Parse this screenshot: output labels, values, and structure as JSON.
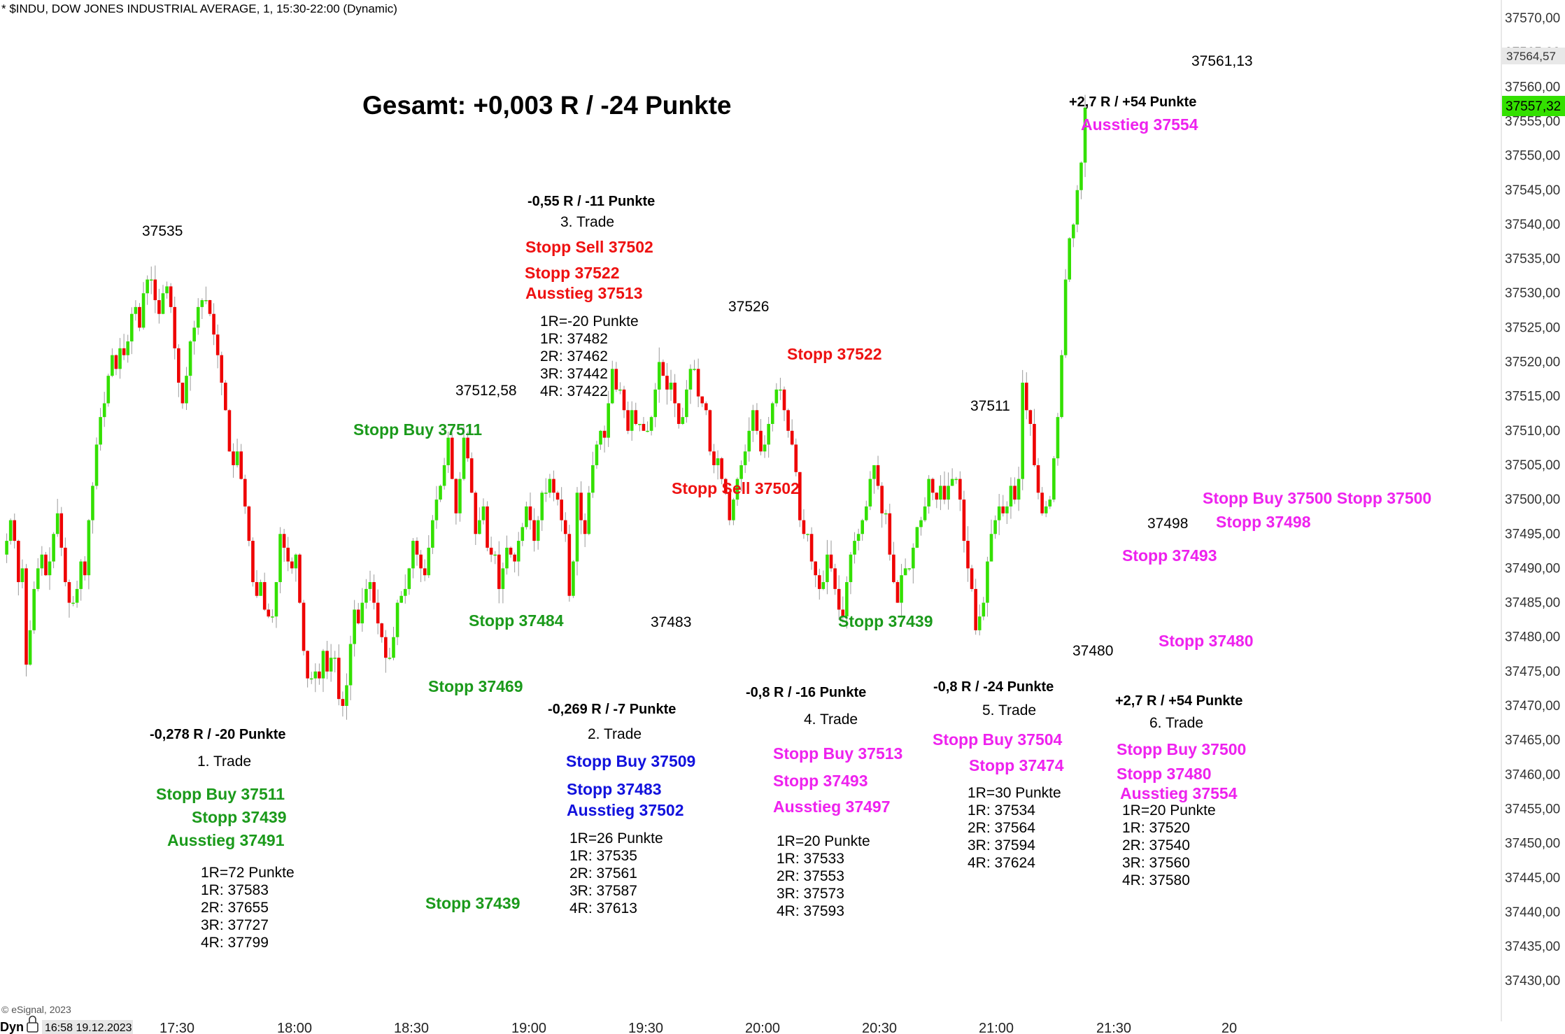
{
  "header": {
    "symbol_line": "* $INDU, DOW JONES INDUSTRIAL AVERAGE, 1, 15:30-22:00 (Dynamic)"
  },
  "footer": {
    "copyright": "© eSignal, 2023",
    "mode": "Dyn",
    "timestamp": "16:58 19.12.2023"
  },
  "colors": {
    "up": "#33e000",
    "down": "#ee0000",
    "green_note": "#1b9a1b",
    "red_note": "#ee1111",
    "blue_note": "#1111dd",
    "magenta_note": "#ee22ee",
    "last_price_bg": "#33e000"
  },
  "price_axis": {
    "labels": [
      "37570,00",
      "37565,00",
      "37560,00",
      "37555,00",
      "37550,00",
      "37545,00",
      "37540,00",
      "37535,00",
      "37530,00",
      "37525,00",
      "37520,00",
      "37515,00",
      "37510,00",
      "37505,00",
      "37500,00",
      "37495,00",
      "37490,00",
      "37485,00",
      "37480,00",
      "37475,00",
      "37470,00",
      "37465,00",
      "37460,00",
      "37455,00",
      "37450,00",
      "37445,00",
      "37440,00",
      "37435,00",
      "37430,00"
    ],
    "ref_price": "37564,57",
    "last_price": "37557,32"
  },
  "time_axis": [
    "17:30",
    "18:00",
    "18:30",
    "19:00",
    "19:30",
    "20:00",
    "20:30",
    "21:00",
    "21:30",
    "20"
  ],
  "title": "Gesamt: +0,003 R / -24 Punkte",
  "price_marks": [
    "37535",
    "37512,58",
    "37526",
    "37511",
    "37561,13",
    "37483",
    "37480",
    "37498"
  ],
  "annotations": {
    "t1": {
      "result": "-0,278 R / -20 Punkte",
      "name": "1. Trade",
      "entry": "Stopp Buy 37511",
      "stop": "Stopp 37439",
      "exit": "Ausstieg 37491",
      "r": [
        "1R=72 Punkte",
        "1R: 37583",
        "2R: 37655",
        "3R: 37727",
        "4R: 37799"
      ]
    },
    "t2": {
      "result": "-0,269 R / -7 Punkte",
      "name": "2. Trade",
      "entry": "Stopp Buy 37509",
      "stop": "Stopp 37483",
      "exit": "Ausstieg 37502",
      "r": [
        "1R=26 Punkte",
        "1R: 37535",
        "2R: 37561",
        "3R: 37587",
        "4R: 37613"
      ]
    },
    "t3": {
      "result": "-0,55 R / -11 Punkte",
      "name": "3. Trade",
      "entry": "Stopp Sell 37502",
      "stop": "Stopp 37522",
      "exit": "Ausstieg 37513",
      "r": [
        "1R=-20 Punkte",
        "1R: 37482",
        "2R: 37462",
        "3R: 37442",
        "4R: 37422"
      ]
    },
    "t4": {
      "result": "-0,8 R / -16 Punkte",
      "name": "4. Trade",
      "entry": "Stopp Buy 37513",
      "stop": "Stopp 37493",
      "exit": "Ausstieg 37497",
      "r": [
        "1R=20 Punkte",
        "1R: 37533",
        "2R: 37553",
        "3R: 37573",
        "4R: 37593"
      ]
    },
    "t5": {
      "result": "-0,8 R / -24 Punkte",
      "name": "5. Trade",
      "entry": "Stopp Buy 37504",
      "stop": "Stopp 37474",
      "r": [
        "1R=30 Punkte",
        "1R: 37534",
        "2R: 37564",
        "3R: 37594",
        "4R: 37624"
      ]
    },
    "t6": {
      "result": "+2,7 R / +54 Punkte",
      "name": "6. Trade",
      "entry": "Stopp Buy 37500",
      "stop": "Stopp 37480",
      "exit": "Ausstieg 37554",
      "r": [
        "1R=20 Punkte",
        "1R: 37520",
        "2R: 37540",
        "3R: 37560",
        "4R: 37580"
      ]
    },
    "chart_labels": {
      "sb_37511": "Stopp Buy 37511",
      "s_37484": "Stopp 37484",
      "s_37469": "Stopp 37469",
      "s_37439": "Stopp 37439",
      "s_37439b": "Stopp 37439",
      "ss_37502": "Stopp Sell 37502",
      "s_37522": "Stopp 37522",
      "sb_37500": "Stopp Buy 37500 Stopp 37500",
      "s_37498": "Stopp 37498",
      "s_37493": "Stopp 37493",
      "s_37480": "Stopp 37480",
      "top_result": "+2,7 R / +54 Punkte",
      "top_exit": "Ausstieg 37554"
    }
  },
  "chart_data": {
    "type": "candlestick",
    "title": "* $INDU, DOW JONES INDUSTRIAL AVERAGE, 1, 15:30-22:00 (Dynamic)",
    "interval": "1 min",
    "ylim": [
      37427,
      37572
    ],
    "x_ticks": [
      "17:30",
      "18:00",
      "18:30",
      "19:00",
      "19:30",
      "20:00",
      "20:30",
      "21:00",
      "21:30",
      "20"
    ],
    "start_time": "17:15",
    "closes": [
      37492,
      37494,
      37497,
      37494,
      37488,
      37490,
      37476,
      37481,
      37487,
      37490,
      37492,
      37489,
      37491,
      37495,
      37498,
      37493,
      37488,
      37485,
      37485,
      37487,
      37491,
      37489,
      37497,
      37502,
      37508,
      37512,
      37514,
      37518,
      37521,
      37519,
      37522,
      37521,
      37523,
      37527,
      37528,
      37525,
      37530,
      37532,
      37532,
      37529,
      37527,
      37530,
      37531,
      37528,
      37522,
      37517,
      37514,
      37518,
      37523,
      37525,
      37528,
      37529,
      37529,
      37527,
      37524,
      37521,
      37517,
      37513,
      37507,
      37505,
      37507,
      37503,
      37499,
      37494,
      37488,
      37486,
      37488,
      37484,
      37483,
      37483,
      37488,
      37495,
      37493,
      37491,
      37490,
      37492,
      37485,
      37478,
      37474,
      37474,
      37475,
      37474,
      37478,
      37475,
      37477,
      37477,
      37471,
      37470,
      37473,
      37479,
      37484,
      37482,
      37485,
      37487,
      37488,
      37485,
      37482,
      37480,
      37477,
      37477,
      37480,
      37485,
      37486,
      37487,
      37490,
      37494,
      37492,
      37490,
      37489,
      37493,
      37497,
      37500,
      37502,
      37505,
      37509,
      37503,
      37498,
      37503,
      37509,
      37506,
      37501,
      37495,
      37497,
      37499,
      37493,
      37492,
      37492,
      37487,
      37490,
      37493,
      37492,
      37491,
      37494,
      37496,
      37499,
      37497,
      37494,
      37497,
      37501,
      37501,
      37503,
      37501,
      37500,
      37497,
      37495,
      37486,
      37491,
      37501,
      37497,
      37495,
      37501,
      37505,
      37508,
      37510,
      37509,
      37514,
      37519,
      37516,
      37516,
      37513,
      37510,
      37513,
      37511,
      37511,
      37510,
      37510,
      37512,
      37516,
      37520,
      37518,
      37516,
      37517,
      37514,
      37511,
      37512,
      37516,
      37519,
      37519,
      37515,
      37514,
      37513,
      37507,
      37505,
      37506,
      37503,
      37501,
      37497,
      37500,
      37503,
      37505,
      37507,
      37510,
      37513,
      37510,
      37507,
      37508,
      37511,
      37514,
      37516,
      37516,
      37513,
      37510,
      37508,
      37504,
      37497,
      37495,
      37495,
      37491,
      37489,
      37487,
      37488,
      37492,
      37490,
      37487,
      37484,
      37483,
      37488,
      37492,
      37494,
      37495,
      37497,
      37499,
      37503,
      37505,
      37502,
      37498,
      37498,
      37492,
      37488,
      37485,
      37489,
      37490,
      37490,
      37493,
      37496,
      37497,
      37499,
      37503,
      37501,
      37500,
      37502,
      37500,
      37502,
      37503,
      37503,
      37500,
      37494,
      37490,
      37487,
      37481,
      37483,
      37485,
      37491,
      37495,
      37497,
      37499,
      37498,
      37499,
      37502,
      37500,
      37503,
      37517,
      37513,
      37511,
      37505,
      37501,
      37498,
      37499,
      37500,
      37506,
      37512,
      37521,
      37532,
      37538,
      37540,
      37545,
      37549,
      37557
    ]
  }
}
